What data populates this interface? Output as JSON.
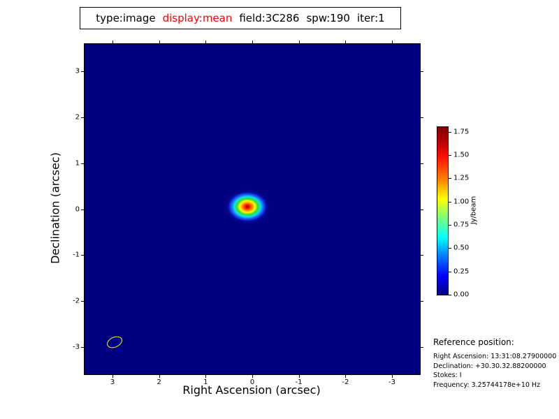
{
  "title": {
    "segments": [
      {
        "text": "type:image",
        "color": "#000000"
      },
      {
        "text": "display:mean",
        "color": "#ff0000"
      },
      {
        "text": "field:3C286",
        "color": "#000000"
      },
      {
        "text": "spw:190",
        "color": "#000000"
      },
      {
        "text": "iter:1",
        "color": "#000000"
      }
    ]
  },
  "chart_data": {
    "type": "heatmap",
    "description": "Radio interferometric image of 3C286: a single compact elliptical Gaussian point source near the field center on a uniform zero-level background, rendered with the jet colormap; yellow synthesized-beam ellipse drawn at lower left",
    "xlabel": "Right Ascension (arcsec)",
    "ylabel": "Declination (arcsec)",
    "xlim": [
      3.6,
      -3.6
    ],
    "ylim": [
      -3.6,
      3.6
    ],
    "x_ticks": [
      3,
      2,
      1,
      0,
      -1,
      -2,
      -3
    ],
    "y_ticks": [
      3,
      2,
      1,
      0,
      -1,
      -2,
      -3
    ],
    "background_value": 0.0,
    "source": {
      "x": 0.1,
      "y": 0.05,
      "peak_value": 1.85,
      "shape": "elliptical-gaussian"
    },
    "beam": {
      "x": 2.95,
      "y": -2.9,
      "color": "#ffff00"
    },
    "colorbar": {
      "label": "Jy/beam",
      "ticks": [
        1.75,
        1.5,
        1.25,
        1.0,
        0.75,
        0.5,
        0.25,
        0.0
      ],
      "range": [
        0.0,
        1.8
      ],
      "colormap": "jet"
    },
    "grid": false,
    "legend": false
  },
  "reference": {
    "heading": "Reference position:",
    "lines": [
      "Right Ascension: 13:31:08.27900000",
      "Declination: +30.30.32.88200000",
      "Stokes: I",
      "Frequency: 3.25744178e+10 Hz"
    ]
  },
  "colors": {
    "plot_background": "#000080",
    "peak": "#7f0000",
    "title_accent": "#ff0000",
    "beam_outline": "#ffff00"
  }
}
